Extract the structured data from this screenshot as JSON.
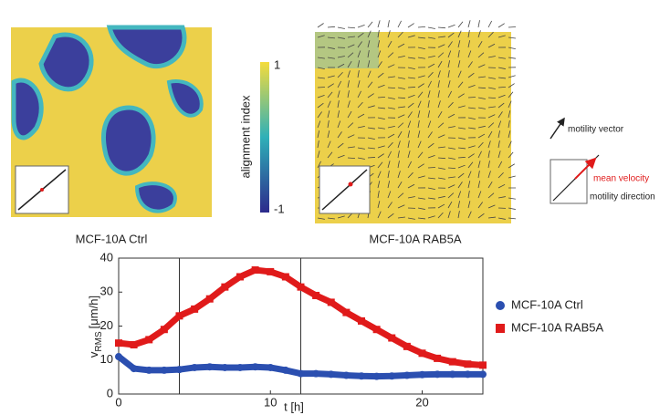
{
  "chart_data": {
    "type": "scatter",
    "xlabel": "t [h]",
    "ylabel": [
      "v",
      "RMS",
      "[μm/h]"
    ],
    "x": [
      0,
      1,
      2,
      3,
      4,
      5,
      6,
      7,
      8,
      9,
      10,
      11,
      12,
      13,
      14,
      15,
      16,
      17,
      18,
      19,
      20,
      21,
      22,
      23,
      24
    ],
    "series": [
      {
        "name": "MCF-10A Ctrl",
        "color": "#2b4fb0",
        "marker": "circle",
        "values": [
          11,
          7.5,
          7,
          7,
          7.2,
          7.8,
          8,
          7.8,
          7.8,
          8,
          7.8,
          7,
          6,
          6,
          5.8,
          5.5,
          5.3,
          5.2,
          5.3,
          5.5,
          5.7,
          5.8,
          5.8,
          5.8,
          5.8
        ]
      },
      {
        "name": "MCF-10A RAB5A",
        "color": "#e01a1a",
        "marker": "square",
        "values": [
          15,
          14.5,
          16,
          19,
          23,
          25,
          28,
          31.5,
          34.5,
          36.5,
          36,
          34.5,
          31.5,
          29,
          27,
          24,
          21.5,
          19,
          16.5,
          14,
          12,
          10.5,
          9.5,
          8.8,
          8.5
        ]
      }
    ],
    "vlines": [
      4,
      12
    ],
    "xlim": [
      0,
      24
    ],
    "xticks": [
      0,
      10,
      20
    ],
    "ylim": [
      0,
      40
    ],
    "yticks": [
      0,
      10,
      20,
      30,
      40
    ]
  },
  "panels": {
    "left_label": "MCF-10A Ctrl",
    "right_label": "MCF-10A RAB5A",
    "colorbar": {
      "label": "alignment index",
      "max_label": "1",
      "min_label": "-1"
    },
    "key": {
      "vector": "motility vector",
      "mean": "mean velocity",
      "direction": "motility direction"
    }
  }
}
